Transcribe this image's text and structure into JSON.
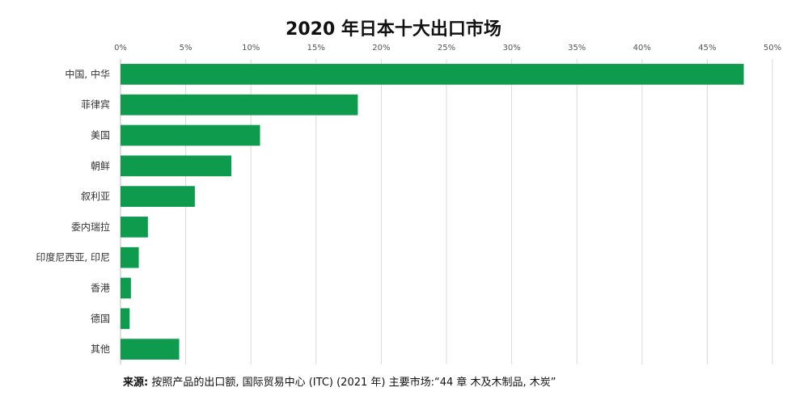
{
  "chart_data": {
    "type": "bar",
    "orientation": "horizontal",
    "title": "2020 年日本十大出口市场",
    "categories": [
      "中国, 中华",
      "菲律宾",
      "美国",
      "朝鲜",
      "叙利亚",
      "委内瑞拉",
      "印度尼西亚, 印尼",
      "香港",
      "德国",
      "其他"
    ],
    "values": [
      47.8,
      18.2,
      10.7,
      8.5,
      5.7,
      2.1,
      1.4,
      0.8,
      0.7,
      4.5
    ],
    "xlim": [
      0,
      50
    ],
    "xticks": [
      0,
      5,
      10,
      15,
      20,
      25,
      30,
      35,
      40,
      45,
      50
    ],
    "xtick_labels": [
      "0%",
      "5%",
      "10%",
      "15%",
      "20%",
      "25%",
      "30%",
      "35%",
      "40%",
      "45%",
      "50%"
    ],
    "axis_position": "top",
    "grid": true,
    "bar_color": "#0e9b4d",
    "grid_color": "#d9d9d9"
  },
  "source": {
    "prefix": "来源:",
    "text": " 按照产品的出口额, 国际贸易中心 (ITC) (2021 年) 主要市场:“44 章 木及木制品, 木炭”"
  }
}
